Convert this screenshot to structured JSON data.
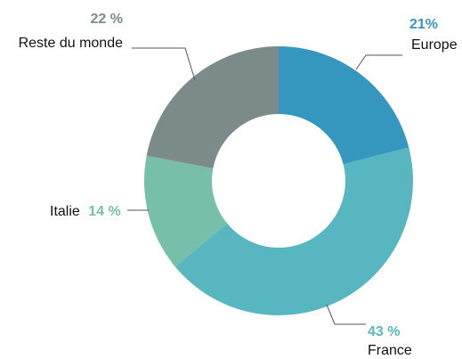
{
  "chart_data": {
    "type": "pie",
    "donut": true,
    "slices": [
      {
        "label": "Europe",
        "value": 21,
        "value_label": "21%",
        "color": "#3596be"
      },
      {
        "label": "France",
        "value": 43,
        "value_label": "43 %",
        "color": "#58b6c0"
      },
      {
        "label": "Italie",
        "value": 14,
        "value_label": "14 %",
        "color": "#77bfa8"
      },
      {
        "label": "Reste du monde",
        "value": 22,
        "value_label": "22 %",
        "color": "#7a8b8a"
      }
    ]
  }
}
